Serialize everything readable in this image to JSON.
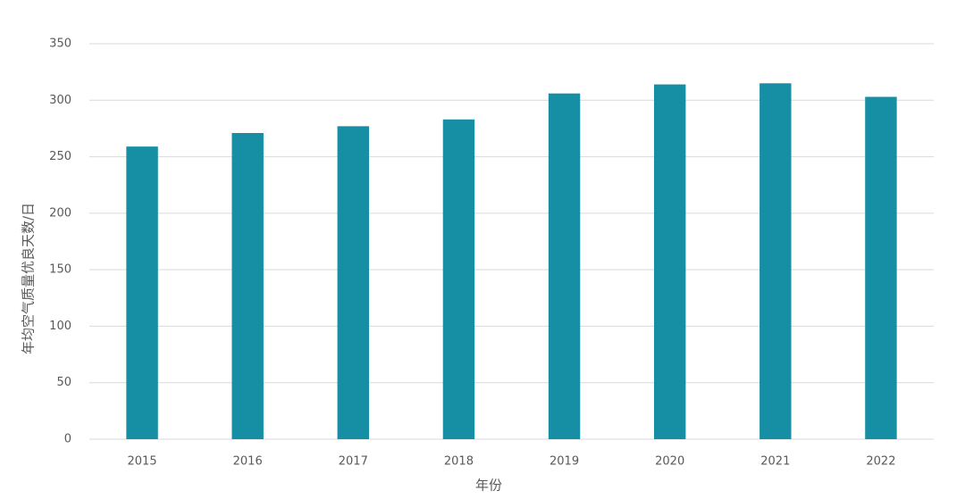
{
  "chart_data": {
    "type": "bar",
    "x_label": "年份",
    "y_label": "年均空气质量优良天数/日",
    "categories": [
      "2015",
      "2016",
      "2017",
      "2018",
      "2019",
      "2020",
      "2021",
      "2022"
    ],
    "values": [
      259,
      271,
      277,
      283,
      306,
      314,
      315,
      303
    ],
    "color": "#168fa5",
    "ylim": [
      0,
      350
    ],
    "yticks": [
      0,
      50,
      100,
      150,
      200,
      250,
      300,
      350
    ],
    "grid": true
  }
}
